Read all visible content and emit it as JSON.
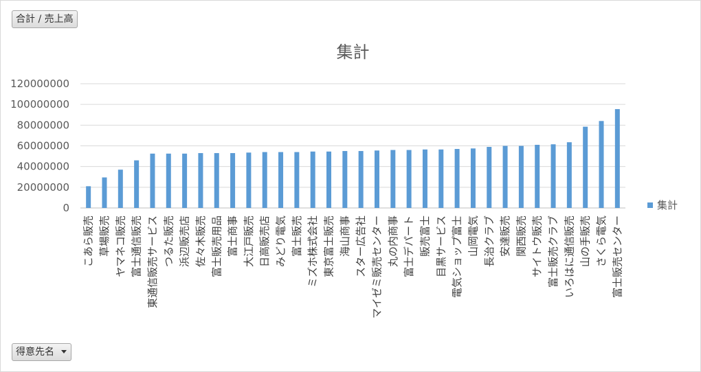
{
  "value_field_button": {
    "label": "合計 / 売上高"
  },
  "axis_field_button": {
    "label": "得意先名"
  },
  "chart_data": {
    "type": "bar",
    "title": "集計",
    "xlabel": "",
    "ylabel": "",
    "ylim": [
      0,
      120000000
    ],
    "yticks": [
      0,
      20000000,
      40000000,
      60000000,
      80000000,
      100000000,
      120000000
    ],
    "grid": true,
    "legend": "right",
    "bar_color": "#5b9bd5",
    "categories": [
      "こあら販売",
      "草場販売",
      "ヤマネコ販売",
      "富士通信販売",
      "東通信販売サービス",
      "つるた販売",
      "浜辺販売店",
      "佐々木販売",
      "富士販売用品",
      "富士商事",
      "大江戸販売",
      "日高販売店",
      "みどり電気",
      "富士販売",
      "ミズホ株式会社",
      "東京富士販売",
      "海山商事",
      "スター広告社",
      "マイゼミ販売センター",
      "丸の内商事",
      "富士デパート",
      "販売富士",
      "目黒サービス",
      "電気ショップ富士",
      "山岡電気",
      "長治クラブ",
      "安達販売",
      "関西販売",
      "サイトウ販売",
      "富士販売クラブ",
      "いろはに通信販売",
      "山の手販売",
      "さくら電気",
      "富士販売センター"
    ],
    "series": [
      {
        "name": "集計",
        "values": [
          21000000,
          29500000,
          37000000,
          46000000,
          52500000,
          52500000,
          52500000,
          53000000,
          53000000,
          53000000,
          53500000,
          54000000,
          54000000,
          54000000,
          54500000,
          54500000,
          55000000,
          55000000,
          55500000,
          56000000,
          56000000,
          56500000,
          56500000,
          57000000,
          57500000,
          59000000,
          60000000,
          60000000,
          61000000,
          61500000,
          63500000,
          78500000,
          84000000,
          95500000
        ]
      }
    ]
  }
}
